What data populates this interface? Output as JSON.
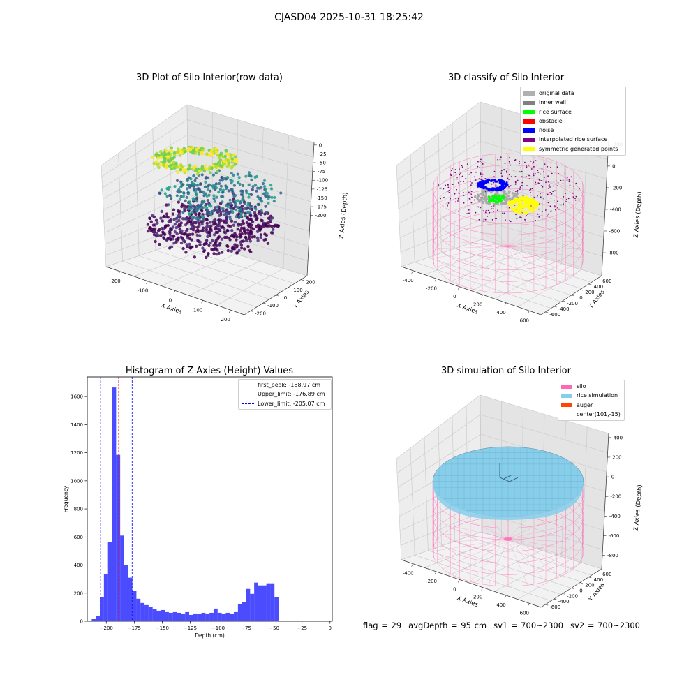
{
  "suptitle": "CJASD04 2025-10-31 18:25:42",
  "panel1": {
    "title": "3D Plot of Silo Interior(row data)",
    "xlabel": "X Axies",
    "ylabel": "Y Axies",
    "zlabel": "Z Axies (Depth)",
    "x_ticks": [
      "-200",
      "-100",
      "0",
      "100",
      "200"
    ],
    "y_ticks": [
      "-200",
      "-100",
      "0",
      "100",
      "200"
    ],
    "z_ticks": [
      "0",
      "-25",
      "-50",
      "-75",
      "-100",
      "-125",
      "-150",
      "-175",
      "-200"
    ]
  },
  "panel2": {
    "title": "3D classify of Silo Interior",
    "xlabel": "X Axies",
    "ylabel": "Y Axies",
    "zlabel": "Z Axies (Depth)",
    "x_ticks": [
      "-400",
      "-200",
      "0",
      "200",
      "400",
      "600"
    ],
    "y_ticks": [
      "-600",
      "-400",
      "-200",
      "0",
      "200",
      "400",
      "600"
    ],
    "z_ticks": [
      "200",
      "0",
      "-200",
      "-400",
      "-600",
      "-800"
    ],
    "legend": [
      {
        "label": "original data",
        "color": "#b0b0b0"
      },
      {
        "label": "inner wall",
        "color": "#808080"
      },
      {
        "label": "rice surface",
        "color": "#00ff00"
      },
      {
        "label": "obstacle",
        "color": "#ff0000"
      },
      {
        "label": "noise",
        "color": "#0000ff"
      },
      {
        "label": "interpolated rice surface",
        "color": "#800080"
      },
      {
        "label": "symmetric generated points",
        "color": "#ffff00"
      }
    ]
  },
  "panel3": {
    "title": "Histogram of Z-Axies (Height) Values",
    "legend": [
      {
        "label": "first_peak: -188.97 cm",
        "color": "#ff0000"
      },
      {
        "label": "Upper_limit: -176.89 cm",
        "color": "#0000ff"
      },
      {
        "label": "Lower_limit: -205.07 cm",
        "color": "#0000ff"
      }
    ]
  },
  "panel4": {
    "title": "3D simulation of Silo Interior",
    "xlabel": "X Axies",
    "ylabel": "Y Axies",
    "zlabel": "Z Axies (Depth)",
    "x_ticks": [
      "-400",
      "-200",
      "0",
      "200",
      "400",
      "600"
    ],
    "y_ticks": [
      "-600",
      "-400",
      "-200",
      "0",
      "200",
      "400",
      "600"
    ],
    "z_ticks": [
      "400",
      "200",
      "0",
      "-200",
      "-400",
      "-600",
      "-800"
    ],
    "legend": [
      {
        "label": "silo",
        "color": "#ff69b4"
      },
      {
        "label": "rice simulation",
        "color": "#87ceeb"
      },
      {
        "label": "auger",
        "color": "#ff4500"
      },
      {
        "label": "center(101,-15)",
        "color": ""
      }
    ]
  },
  "status": {
    "flag": "flag = 29",
    "avg_depth": "avgDepth = 95 cm",
    "sv1": "sv1 = 700~2300",
    "sv2": "sv2 = 700~2300"
  },
  "chart_data": [
    {
      "type": "scatter",
      "title": "3D Plot of Silo Interior(row data)",
      "xlabel": "X Axies",
      "ylabel": "Y Axies",
      "zlabel": "Z Axies (Depth)",
      "xlim": [
        -250,
        250
      ],
      "ylim": [
        -250,
        250
      ],
      "zlim": [
        -210,
        5
      ],
      "colormap": "viridis"
    },
    {
      "type": "scatter",
      "title": "3D classify of Silo Interior",
      "xlabel": "X Axies",
      "ylabel": "Y Axies",
      "zlabel": "Z Axies (Depth)",
      "xlim": [
        -500,
        700
      ],
      "ylim": [
        -700,
        700
      ],
      "zlim": [
        -900,
        300
      ],
      "series": [
        {
          "name": "original data"
        },
        {
          "name": "inner wall"
        },
        {
          "name": "rice surface"
        },
        {
          "name": "obstacle"
        },
        {
          "name": "noise"
        },
        {
          "name": "interpolated rice surface"
        },
        {
          "name": "symmetric generated points"
        }
      ]
    },
    {
      "type": "bar",
      "title": "Histogram of Z-Axies (Height) Values",
      "xlabel": "Depth (cm)",
      "ylabel": "Frequency",
      "xlim": [
        -217,
        2
      ],
      "ylim": [
        0,
        1740
      ],
      "x_ticks": [
        -200,
        -175,
        -150,
        -125,
        -100,
        -75,
        -50,
        -25,
        0
      ],
      "y_ticks": [
        0,
        200,
        400,
        600,
        800,
        1000,
        1200,
        1400,
        1600
      ],
      "bin_start": -213,
      "bin_width": 3.63,
      "values": [
        15,
        35,
        170,
        335,
        565,
        1665,
        1185,
        610,
        400,
        310,
        215,
        160,
        130,
        115,
        100,
        85,
        75,
        80,
        65,
        60,
        65,
        60,
        55,
        65,
        45,
        55,
        50,
        60,
        55,
        60,
        90,
        60,
        55,
        60,
        55,
        65,
        120,
        135,
        230,
        195,
        275,
        255,
        255,
        270,
        270,
        170
      ],
      "color": "#0000ff",
      "vlines": [
        {
          "name": "first_peak",
          "x": -188.97,
          "color": "#ff0000"
        },
        {
          "name": "Upper_limit",
          "x": -176.89,
          "color": "#0000ff"
        },
        {
          "name": "Lower_limit",
          "x": -205.07,
          "color": "#0000ff"
        }
      ]
    },
    {
      "type": "scatter",
      "title": "3D simulation of Silo Interior",
      "xlabel": "X Axies",
      "ylabel": "Y Axies",
      "zlabel": "Z Axies (Depth)",
      "xlim": [
        -500,
        700
      ],
      "ylim": [
        -700,
        700
      ],
      "zlim": [
        -900,
        500
      ],
      "series": [
        {
          "name": "silo"
        },
        {
          "name": "rice simulation"
        },
        {
          "name": "auger"
        },
        {
          "name": "center(101,-15)"
        }
      ]
    }
  ]
}
